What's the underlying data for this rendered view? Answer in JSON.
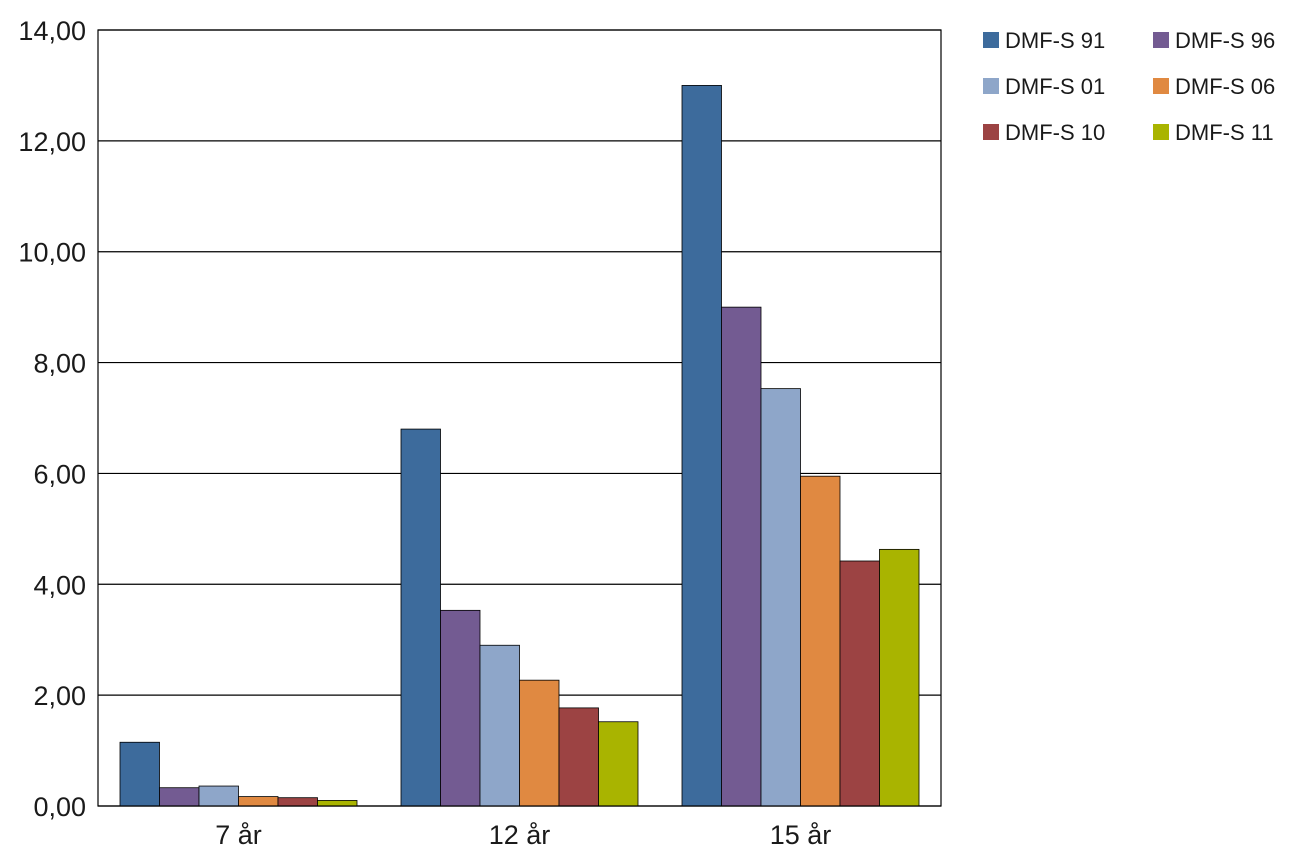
{
  "chart_data": {
    "type": "bar",
    "categories": [
      "7 år",
      "12 år",
      "15 år"
    ],
    "series": [
      {
        "name": "DMF-S 91",
        "color": "#3d6b9c",
        "values": [
          1.15,
          6.8,
          13.0
        ]
      },
      {
        "name": "DMF-S 96",
        "color": "#735b92",
        "values": [
          0.33,
          3.53,
          9.0
        ]
      },
      {
        "name": "DMF-S 01",
        "color": "#8ea6c9",
        "values": [
          0.36,
          2.9,
          7.53
        ]
      },
      {
        "name": "DMF-S 06",
        "color": "#e08941",
        "values": [
          0.17,
          2.27,
          5.95
        ]
      },
      {
        "name": "DMF-S 10",
        "color": "#9c4343",
        "values": [
          0.15,
          1.77,
          4.42
        ]
      },
      {
        "name": "DMF-S 11",
        "color": "#a9b400",
        "values": [
          0.1,
          1.52,
          4.63
        ]
      }
    ],
    "yticks": [
      "0,00",
      "2,00",
      "4,00",
      "6,00",
      "8,00",
      "10,00",
      "12,00",
      "14,00"
    ],
    "ylim": [
      0,
      14
    ],
    "grid": true,
    "legend_position": "top-right"
  }
}
